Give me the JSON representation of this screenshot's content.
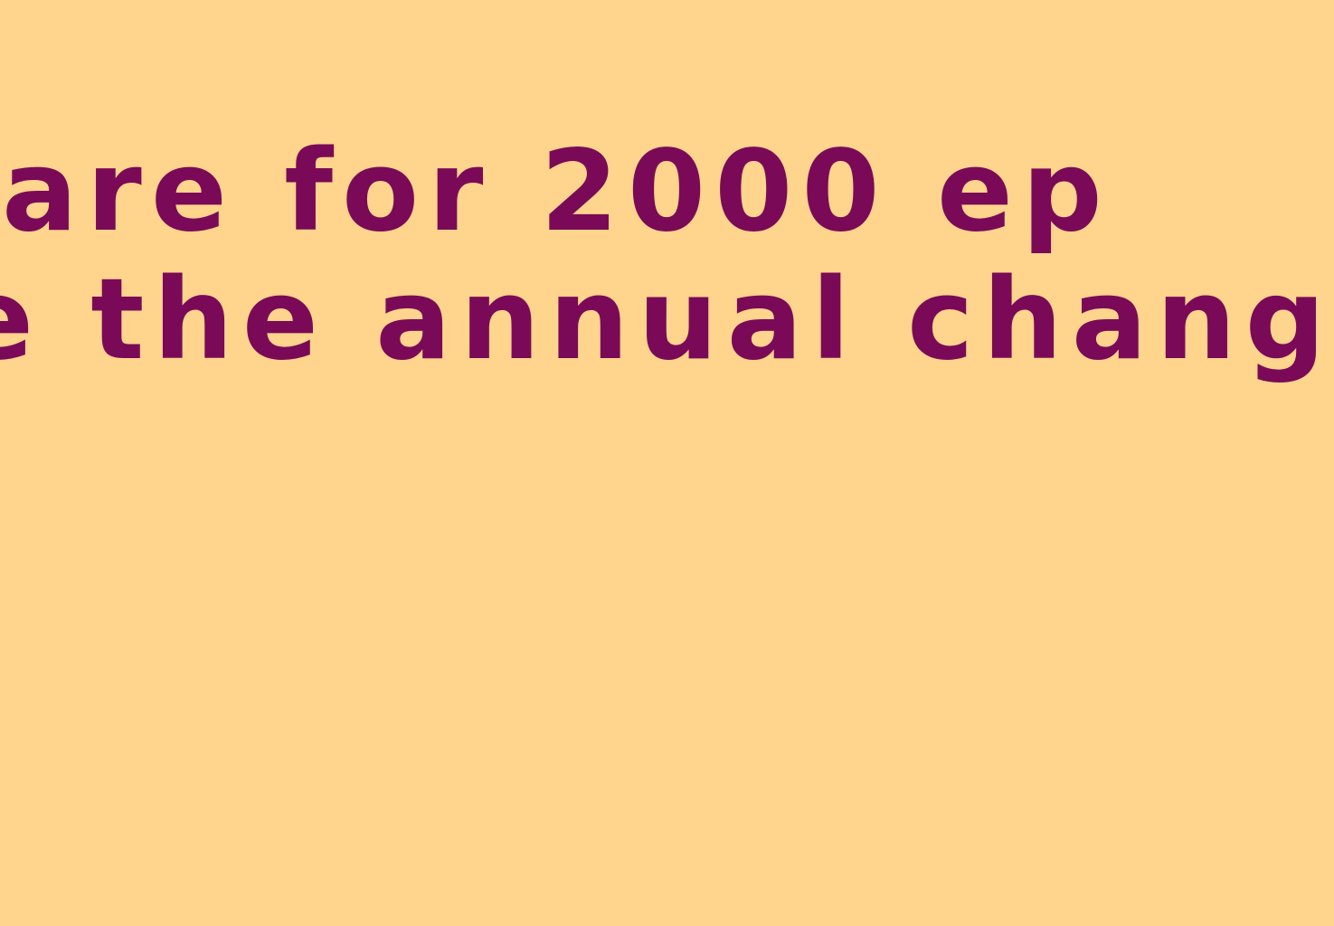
{
  "background_color": "#FFD48C",
  "text_color": "#7A0A57",
  "content": {
    "line_1": " are for 2000 ep",
    "line_2": "e the annual chang"
  }
}
